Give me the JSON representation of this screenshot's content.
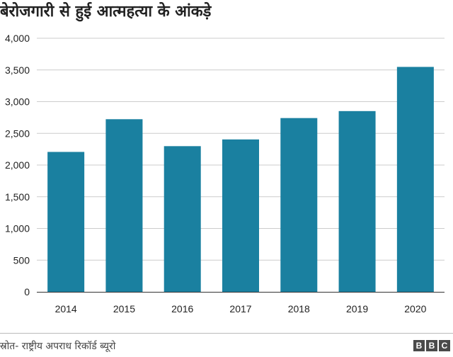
{
  "title": "बेरोजगारी से हुई आत्महत्या के आंकड़े",
  "source": "स्रोत- राष्ट्रीय अपराध रिकॉर्ड ब्यूरो",
  "logo": [
    "B",
    "B",
    "C"
  ],
  "colors": {
    "bar": "#1a80a0",
    "gridline": "#cccccc",
    "axis": "#333333"
  },
  "chart_data": {
    "type": "bar",
    "categories": [
      "2014",
      "2015",
      "2016",
      "2017",
      "2018",
      "2019",
      "2020"
    ],
    "values": [
      2207,
      2723,
      2298,
      2404,
      2741,
      2851,
      3548
    ],
    "title": "बेरोजगारी से हुई आत्महत्या के आंकड़े",
    "xlabel": "",
    "ylabel": "",
    "ylim": [
      0,
      4000
    ],
    "yticks": [
      "0",
      "500",
      "1,000",
      "1,500",
      "2,000",
      "2,500",
      "3,000",
      "3,500",
      "4,000"
    ],
    "grid": true,
    "legend": "none"
  }
}
